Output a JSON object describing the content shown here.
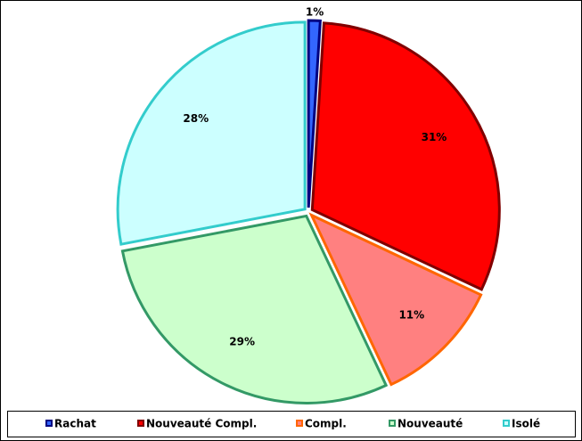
{
  "chart_data": {
    "type": "pie",
    "categories": [
      "Rachat",
      "Nouveauté Compl.",
      "Compl.",
      "Nouveauté",
      "Isolé"
    ],
    "values": [
      1,
      31,
      11,
      29,
      28
    ],
    "value_labels": [
      "1%",
      "31%",
      "11%",
      "29%",
      "28%"
    ],
    "colors": [
      "#3366ff",
      "#ff0000",
      "#ff8080",
      "#ccffcc",
      "#ccffff"
    ],
    "border_colors": [
      "#000080",
      "#800000",
      "#ff6600",
      "#339966",
      "#33cccc"
    ]
  }
}
